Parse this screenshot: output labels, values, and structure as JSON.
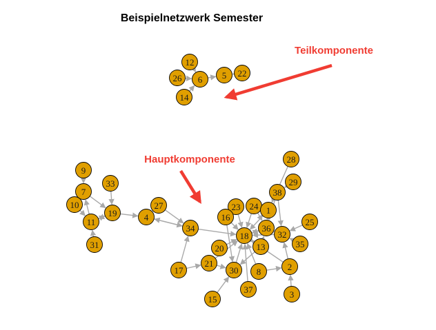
{
  "title": "Beispielnetzwerk Semester",
  "annotations": {
    "sub": "Teilkomponente",
    "main": "Hauptkomponente",
    "color": "#F03C32"
  },
  "node_color": "#E09F00",
  "edge_color": "#A9A9A9",
  "nodes": [
    "12",
    "26",
    "6",
    "5",
    "22",
    "14",
    "28",
    "29",
    "38",
    "23",
    "24",
    "1",
    "16",
    "36",
    "25",
    "32",
    "18",
    "13",
    "35",
    "34",
    "27",
    "4",
    "9",
    "33",
    "7",
    "10",
    "19",
    "11",
    "31",
    "20",
    "21",
    "17",
    "30",
    "8",
    "2",
    "37",
    "15",
    "3"
  ],
  "edges": [
    [
      "12",
      "6"
    ],
    [
      "26",
      "6"
    ],
    [
      "14",
      "6"
    ],
    [
      "6",
      "5"
    ],
    [
      "22",
      "5"
    ],
    [
      "9",
      "7"
    ],
    [
      "33",
      "19"
    ],
    [
      "7",
      "10"
    ],
    [
      "7",
      "19"
    ],
    [
      "10",
      "11"
    ],
    [
      "11",
      "7"
    ],
    [
      "11",
      "19"
    ],
    [
      "31",
      "11"
    ],
    [
      "19",
      "11"
    ],
    [
      "19",
      "4"
    ],
    [
      "27",
      "4"
    ],
    [
      "4",
      "34"
    ],
    [
      "34",
      "4"
    ],
    [
      "27",
      "34"
    ],
    [
      "34",
      "18"
    ],
    [
      "17",
      "34"
    ],
    [
      "28",
      "1"
    ],
    [
      "29",
      "38"
    ],
    [
      "38",
      "36"
    ],
    [
      "38",
      "32"
    ],
    [
      "23",
      "18"
    ],
    [
      "24",
      "18"
    ],
    [
      "1",
      "18"
    ],
    [
      "16",
      "18"
    ],
    [
      "36",
      "18"
    ],
    [
      "18",
      "36"
    ],
    [
      "25",
      "32"
    ],
    [
      "32",
      "36"
    ],
    [
      "35",
      "32"
    ],
    [
      "18",
      "13"
    ],
    [
      "13",
      "36"
    ],
    [
      "20",
      "18"
    ],
    [
      "21",
      "18"
    ],
    [
      "17",
      "21"
    ],
    [
      "15",
      "30"
    ],
    [
      "30",
      "18"
    ],
    [
      "8",
      "18"
    ],
    [
      "37",
      "18"
    ],
    [
      "2",
      "32"
    ],
    [
      "3",
      "2"
    ],
    [
      "8",
      "2"
    ],
    [
      "21",
      "30"
    ],
    [
      "24",
      "36"
    ],
    [
      "1",
      "36"
    ],
    [
      "16",
      "30"
    ],
    [
      "13",
      "30"
    ],
    [
      "32",
      "18"
    ],
    [
      "2",
      "18"
    ]
  ]
}
